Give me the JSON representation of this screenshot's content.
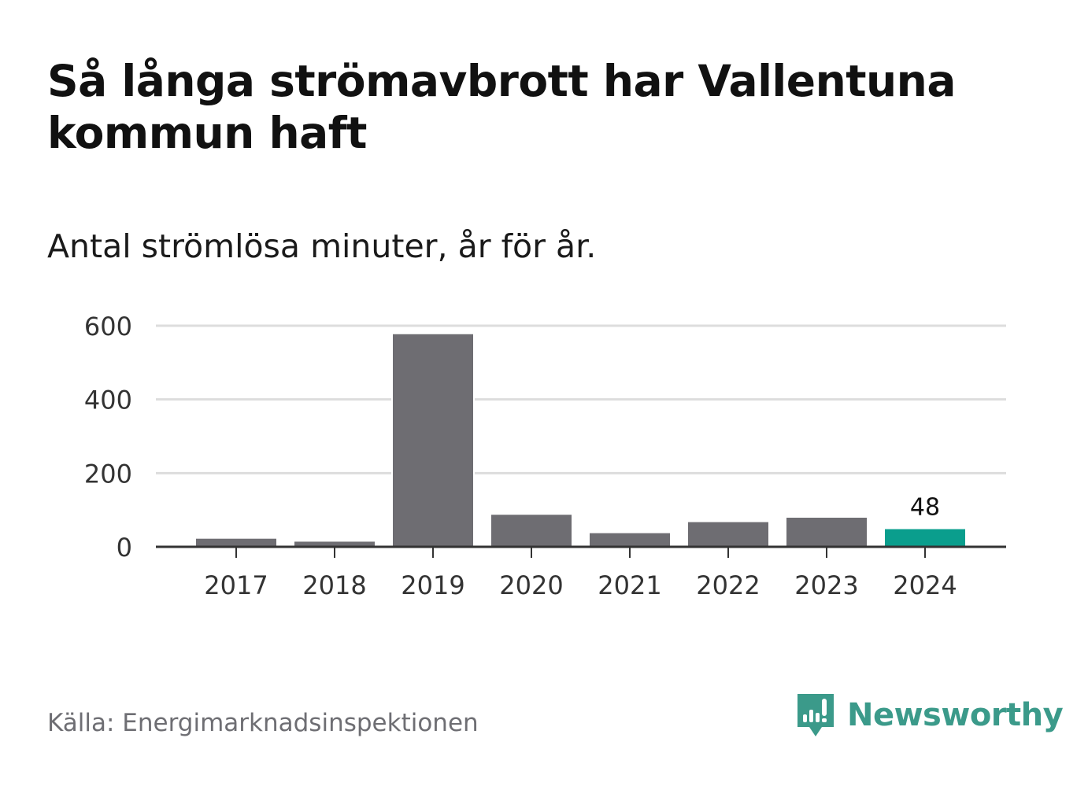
{
  "title": "Så långa strömavbrott har Vallentuna kommun haft",
  "subtitle": "Antal strömlösa minuter, år för år.",
  "source": "Källa: Energimarknadsinspektionen",
  "brand": {
    "name": "Newsworthy",
    "logo_icon": "newsworthy-logo-icon",
    "color": "#3b9a8a"
  },
  "colors": {
    "bar_default": "#6e6d72",
    "bar_highlight": "#0a9e8d",
    "grid": "#dddddd",
    "axis": "#333333",
    "text": "#333333"
  },
  "chart_data": {
    "type": "bar",
    "title": "Så långa strömavbrott har Vallentuna kommun haft",
    "subtitle": "Antal strömlösa minuter, år för år.",
    "xlabel": "",
    "ylabel": "",
    "categories": [
      "2017",
      "2018",
      "2019",
      "2020",
      "2021",
      "2022",
      "2023",
      "2024"
    ],
    "values": [
      22,
      14,
      577,
      87,
      37,
      67,
      79,
      48
    ],
    "ylim": [
      0,
      600
    ],
    "yticks": [
      0,
      200,
      400,
      600
    ],
    "grid": true,
    "legend": "none",
    "highlight_index": 7,
    "annotations": [
      {
        "category": "2024",
        "text": "48"
      }
    ]
  }
}
